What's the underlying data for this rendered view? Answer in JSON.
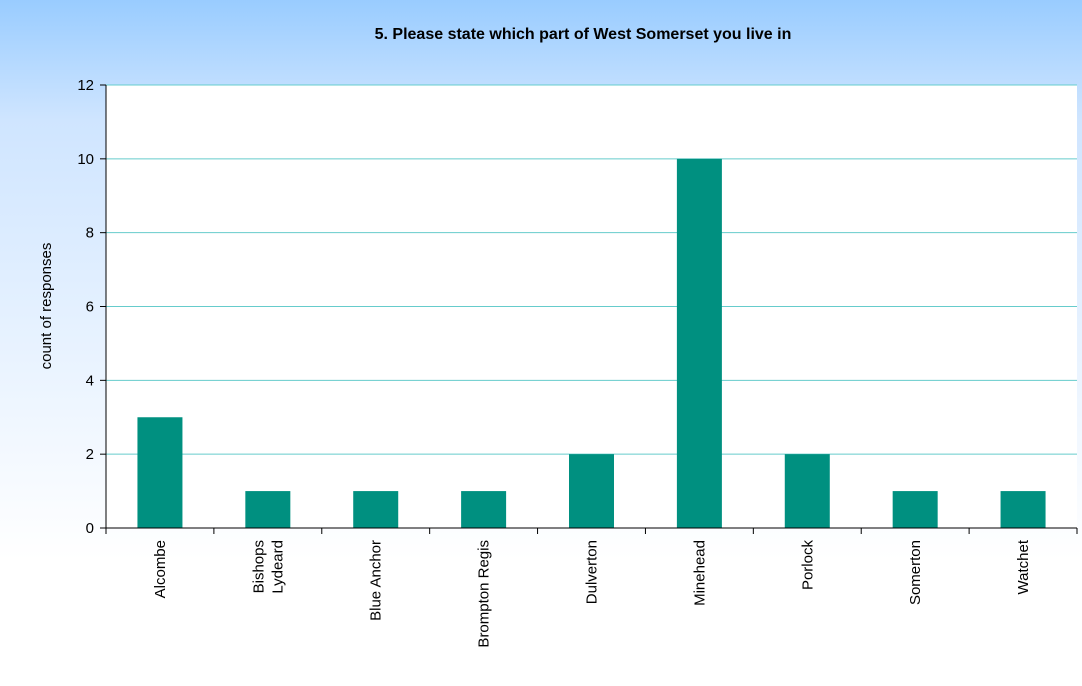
{
  "chart_data": {
    "type": "bar",
    "title": "5. Please state which part of West Somerset you live in",
    "xlabel": "",
    "ylabel": "count of responses",
    "categories": [
      "Alcombe",
      [
        "Bishops",
        "Lydeard"
      ],
      "Blue Anchor",
      "Brompton Regis",
      "Dulverton",
      "Minehead",
      "Porlock",
      "Somerton",
      "Watchet"
    ],
    "values": [
      3,
      1,
      1,
      1,
      2,
      10,
      2,
      1,
      1
    ],
    "ylim": [
      0,
      12
    ],
    "yticks": [
      0,
      2,
      4,
      6,
      8,
      10,
      12
    ],
    "grid": true,
    "legend": "none",
    "colors": {
      "bar": "#009080",
      "grid": "#66cccc",
      "plot_background": "#ffffff",
      "header_background": "#99ccff",
      "axis": "#000000"
    }
  }
}
